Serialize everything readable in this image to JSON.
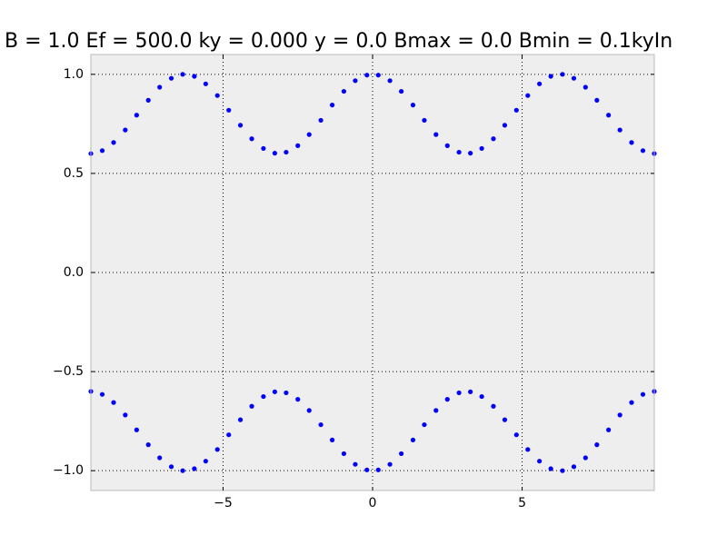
{
  "chart_data": {
    "type": "scatter",
    "title": "B = 1.0 Ef = 500.0 ky = 0.000 y = 0.0 Bmax = 0.0 Bmin = 0.1kyIn",
    "x": [
      -9.42,
      -9.04,
      -8.66,
      -8.27,
      -7.89,
      -7.5,
      -7.12,
      -6.73,
      -6.35,
      -5.96,
      -5.58,
      -5.19,
      -4.81,
      -4.42,
      -4.04,
      -3.65,
      -3.27,
      -2.89,
      -2.5,
      -2.12,
      -1.73,
      -1.35,
      -0.96,
      -0.58,
      -0.19,
      0.19,
      0.58,
      0.96,
      1.35,
      1.73,
      2.12,
      2.5,
      2.89,
      3.27,
      3.65,
      4.04,
      4.42,
      4.81,
      5.19,
      5.58,
      5.96,
      6.35,
      6.73,
      7.12,
      7.5,
      7.89,
      8.27,
      8.66,
      9.04,
      9.42
    ],
    "series": [
      {
        "color": "#0000ff",
        "values": [
          0.6,
          0.615,
          0.656,
          0.719,
          0.794,
          0.869,
          0.935,
          0.98,
          1.0,
          0.99,
          0.952,
          0.893,
          0.819,
          0.743,
          0.675,
          0.626,
          0.602,
          0.607,
          0.64,
          0.696,
          0.768,
          0.845,
          0.914,
          0.968,
          0.996,
          0.996,
          0.968,
          0.914,
          0.845,
          0.768,
          0.696,
          0.64,
          0.607,
          0.602,
          0.626,
          0.675,
          0.743,
          0.819,
          0.893,
          0.952,
          0.99,
          1.0,
          0.98,
          0.935,
          0.869,
          0.794,
          0.719,
          0.656,
          0.615,
          0.6
        ]
      },
      {
        "color": "#0000ff",
        "values": [
          -0.6,
          -0.615,
          -0.656,
          -0.719,
          -0.794,
          -0.869,
          -0.935,
          -0.98,
          -1.0,
          -0.99,
          -0.952,
          -0.893,
          -0.819,
          -0.743,
          -0.675,
          -0.626,
          -0.602,
          -0.607,
          -0.64,
          -0.696,
          -0.768,
          -0.845,
          -0.914,
          -0.968,
          -0.996,
          -0.996,
          -0.968,
          -0.914,
          -0.845,
          -0.768,
          -0.696,
          -0.64,
          -0.607,
          -0.602,
          -0.626,
          -0.675,
          -0.743,
          -0.819,
          -0.893,
          -0.952,
          -0.99,
          -1.0,
          -0.98,
          -0.935,
          -0.869,
          -0.794,
          -0.719,
          -0.656,
          -0.615,
          -0.6
        ]
      }
    ],
    "xlim": [
      -9.42,
      9.42
    ],
    "ylim": [
      -1.1,
      1.1
    ],
    "xticks": [
      {
        "value": -5,
        "label": "−5"
      },
      0,
      5
    ],
    "yticks": [
      {
        "value": -1.0,
        "label": "−1.0"
      },
      {
        "value": -0.5,
        "label": "−0.5"
      },
      {
        "value": 0.0,
        "label": "0.0"
      },
      {
        "value": 0.5,
        "label": "0.5"
      },
      {
        "value": 1.0,
        "label": "1.0"
      }
    ],
    "grid": true,
    "background": "#eeeeee"
  }
}
